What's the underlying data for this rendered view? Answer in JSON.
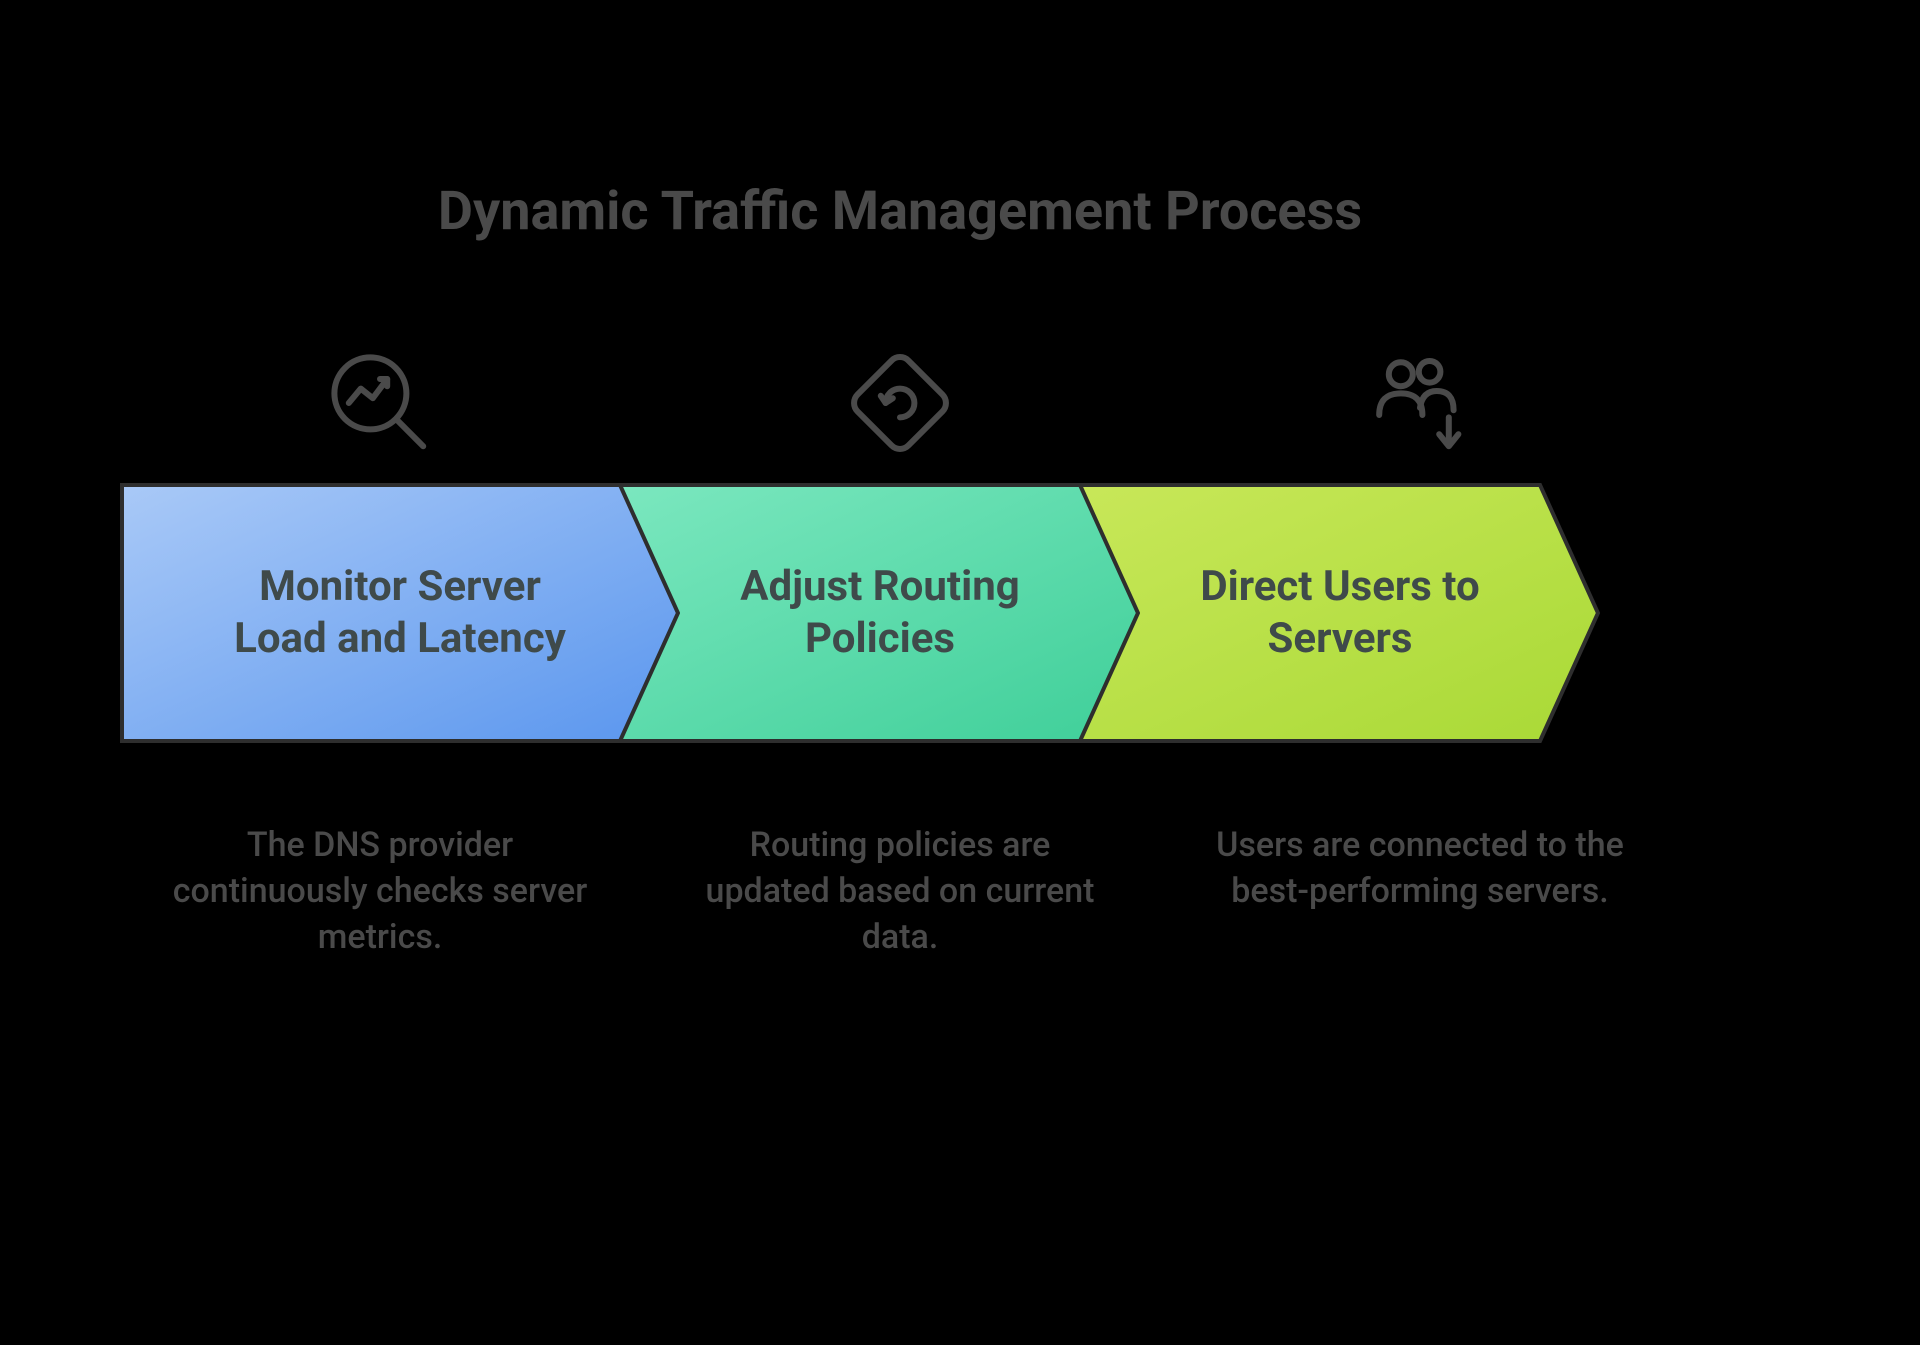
{
  "diagram": {
    "type": "infographic",
    "background_color": "#000000",
    "title": "Dynamic Traffic Management Process",
    "title_color": "#4a4a4a",
    "title_fontsize": 54,
    "icon_stroke": "#4a4a4a",
    "caption_color": "#4a4a4a",
    "caption_fontsize": 34,
    "label_color": "#3f4a4a",
    "label_fontsize": 42,
    "arrow_stroke": "#2e2e2e",
    "arrow_stroke_width": 4,
    "chevron_height": 260,
    "chevron_width": 560,
    "chevron_overlap": 40,
    "steps": [
      {
        "icon": "monitor-graph",
        "label": "Monitor Server Load and Latency",
        "caption": "The DNS provider continuously checks server metrics.",
        "fill_start": "#a9c9f7",
        "fill_end": "#5a96ee",
        "first": true
      },
      {
        "icon": "refresh-diamond",
        "label": "Adjust Routing Policies",
        "caption": "Routing policies are updated based on current data.",
        "fill_start": "#7de8c0",
        "fill_end": "#3fcf99",
        "first": false
      },
      {
        "icon": "users-down",
        "label": "Direct Users to Servers",
        "caption": "Users are connected to the best-performing servers.",
        "fill_start": "#c9e85a",
        "fill_end": "#a9d936",
        "first": false
      }
    ]
  }
}
